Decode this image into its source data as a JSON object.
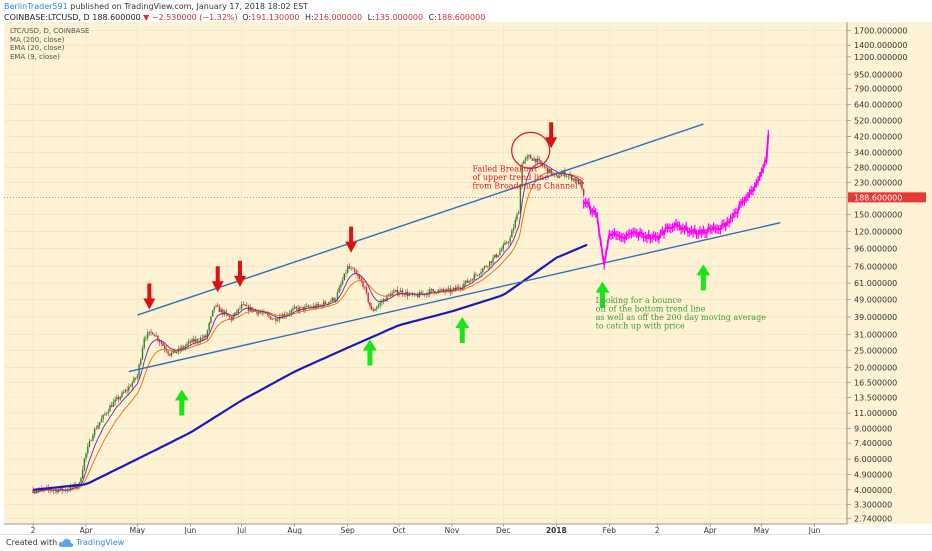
{
  "header": {
    "username": "BerlinTrader591",
    "published_text": "published on TradingView.com, January 17, 2018 18:02 EST",
    "symbol": "COINBASE:LTCUSD, D",
    "last_price": "188.600000",
    "change_arrow": "▼",
    "change": "−2.530000 (−1.32%)",
    "o_label": "O:",
    "o": "191.130000",
    "h_label": "H:",
    "h": "216.000000",
    "l_label": "L:",
    "l": "135.000000",
    "c_label": "C:",
    "c": "188.600000"
  },
  "legend": [
    "LTC/USD, D, COINBASE",
    "MA (200, close)",
    "EMA (20, close)",
    "EMA (9, close)"
  ],
  "footer": {
    "created_with": "Created with",
    "brand": "TradingView"
  },
  "colors": {
    "background": "#fdf2d3",
    "candle_up": "#2e7d32",
    "candle_down": "#c62828",
    "ema_fast": "#7b1fa2",
    "ema_slow": "#ef6c00",
    "ma200": "#1a1ab8",
    "trendline": "#2f6fc0",
    "projection": "#ff00ff",
    "arrow_up": "#19e619",
    "arrow_down": "#e01010",
    "annotation_red": "#d81b1b",
    "annotation_green": "#3a9b3a",
    "price_tag": "#e53935"
  },
  "chart_data": {
    "type": "candlestick",
    "scale": "log",
    "y_axis_labels": [
      "1700.000000",
      "1400.000000",
      "1200.000000",
      "950.000000",
      "790.000000",
      "640.000000",
      "520.000000",
      "420.000000",
      "340.000000",
      "280.000000",
      "230.000000",
      "188.600000",
      "150.000000",
      "120.000000",
      "96.000000",
      "76.000000",
      "61.000000",
      "49.000000",
      "39.000000",
      "31.000000",
      "25.000000",
      "20.000000",
      "16.500000",
      "13.500000",
      "11.000000",
      "9.000000",
      "7.400000",
      "6.000000",
      "4.900000",
      "4.000000",
      "3.300000",
      "2.740000"
    ],
    "current_price_tag": "188.600000",
    "x_axis_labels": [
      "2",
      "Apr",
      "May",
      "Jun",
      "Jul",
      "Aug",
      "Sep",
      "Oct",
      "Nov",
      "Dec",
      "2018",
      "Feb",
      "2",
      "Apr",
      "May",
      "Jun"
    ],
    "price_path": [
      [
        "2017-03-01",
        4.0
      ],
      [
        "2017-03-20",
        4.0
      ],
      [
        "2017-03-28",
        4.3
      ],
      [
        "2017-03-31",
        6.0
      ],
      [
        "2017-04-05",
        8.5
      ],
      [
        "2017-04-15",
        12.0
      ],
      [
        "2017-04-25",
        15.0
      ],
      [
        "2017-05-01",
        18.0
      ],
      [
        "2017-05-05",
        30.0
      ],
      [
        "2017-05-10",
        32.0
      ],
      [
        "2017-05-20",
        24.0
      ],
      [
        "2017-05-25",
        25.0
      ],
      [
        "2017-06-01",
        28.0
      ],
      [
        "2017-06-10",
        30.0
      ],
      [
        "2017-06-15",
        45.0
      ],
      [
        "2017-06-25",
        38.0
      ],
      [
        "2017-07-01",
        45.0
      ],
      [
        "2017-07-10",
        42.0
      ],
      [
        "2017-07-20",
        38.0
      ],
      [
        "2017-08-01",
        43.0
      ],
      [
        "2017-08-15",
        45.0
      ],
      [
        "2017-08-25",
        50.0
      ],
      [
        "2017-09-01",
        75.0
      ],
      [
        "2017-09-05",
        70.0
      ],
      [
        "2017-09-10",
        60.0
      ],
      [
        "2017-09-15",
        42.0
      ],
      [
        "2017-09-25",
        52.0
      ],
      [
        "2017-10-01",
        55.0
      ],
      [
        "2017-10-10",
        51.0
      ],
      [
        "2017-10-20",
        55.0
      ],
      [
        "2017-11-01",
        55.0
      ],
      [
        "2017-11-10",
        62.0
      ],
      [
        "2017-11-20",
        75.0
      ],
      [
        "2017-11-28",
        90.0
      ],
      [
        "2017-12-05",
        110.0
      ],
      [
        "2017-12-10",
        160.0
      ],
      [
        "2017-12-12",
        300.0
      ],
      [
        "2017-12-16",
        320.0
      ],
      [
        "2017-12-20",
        310.0
      ],
      [
        "2017-12-25",
        280.0
      ],
      [
        "2018-01-01",
        245.0
      ],
      [
        "2018-01-05",
        260.0
      ],
      [
        "2018-01-10",
        245.0
      ],
      [
        "2018-01-15",
        225.0
      ],
      [
        "2018-01-17",
        188.6
      ]
    ],
    "ma200": [
      [
        "2017-03-01",
        4.0
      ],
      [
        "2017-04-01",
        4.3
      ],
      [
        "2017-05-01",
        6.0
      ],
      [
        "2017-06-01",
        8.5
      ],
      [
        "2017-07-01",
        13.0
      ],
      [
        "2017-08-01",
        19.0
      ],
      [
        "2017-09-01",
        26.0
      ],
      [
        "2017-10-01",
        35.0
      ],
      [
        "2017-11-01",
        42.0
      ],
      [
        "2017-12-01",
        52.0
      ],
      [
        "2018-01-01",
        85.0
      ],
      [
        "2018-01-20",
        102.0
      ]
    ],
    "upper_trendline": [
      [
        "2017-05-01",
        40.0
      ],
      [
        "2018-03-28",
        495.0
      ]
    ],
    "lower_trendline": [
      [
        "2017-04-26",
        19.0
      ],
      [
        "2018-05-12",
        135.0
      ]
    ],
    "projection": [
      [
        "2018-01-17",
        175.0
      ],
      [
        "2018-01-20",
        170.0
      ],
      [
        "2018-01-25",
        145.0
      ],
      [
        "2018-01-29",
        76.0
      ],
      [
        "2018-02-01",
        120.0
      ],
      [
        "2018-02-08",
        108.0
      ],
      [
        "2018-02-15",
        118.0
      ],
      [
        "2018-02-25",
        112.0
      ],
      [
        "2018-03-01",
        110.0
      ],
      [
        "2018-03-08",
        130.0
      ],
      [
        "2018-03-15",
        128.0
      ],
      [
        "2018-03-22",
        120.0
      ],
      [
        "2018-03-28",
        118.0
      ],
      [
        "2018-04-01",
        125.0
      ],
      [
        "2018-04-06",
        122.0
      ],
      [
        "2018-04-15",
        150.0
      ],
      [
        "2018-04-22",
        185.0
      ],
      [
        "2018-04-28",
        220.0
      ],
      [
        "2018-05-02",
        270.0
      ],
      [
        "2018-05-04",
        320.0
      ],
      [
        "2018-05-05",
        430.0
      ]
    ],
    "down_arrows": [
      [
        "2017-05-08",
        43.0
      ],
      [
        "2017-06-17",
        54.0
      ],
      [
        "2017-06-30",
        58.0
      ],
      [
        "2017-09-03",
        91.0
      ],
      [
        "2017-12-29",
        360.0
      ]
    ],
    "up_arrows": [
      [
        "2017-05-27",
        15.0
      ],
      [
        "2017-09-14",
        29.0
      ],
      [
        "2017-11-07",
        39.0
      ],
      [
        "2018-01-28",
        62.0
      ],
      [
        "2018-03-28",
        78.0
      ]
    ],
    "circle_center": [
      "2017-12-17",
      350.0
    ],
    "annotations": [
      {
        "lines": [
          "Failed Breakout",
          "of upper trend line",
          "from Broadening Channel"
        ],
        "anchor": [
          "2017-11-13",
          265.0
        ],
        "color": "red"
      },
      {
        "lines": [
          "Looking for a bounce",
          "off of the bottom trend line",
          "as well as off the 200 day moving average",
          "to catch up with price"
        ],
        "anchor": [
          "2018-01-24",
          47.0
        ],
        "color": "green"
      }
    ]
  }
}
